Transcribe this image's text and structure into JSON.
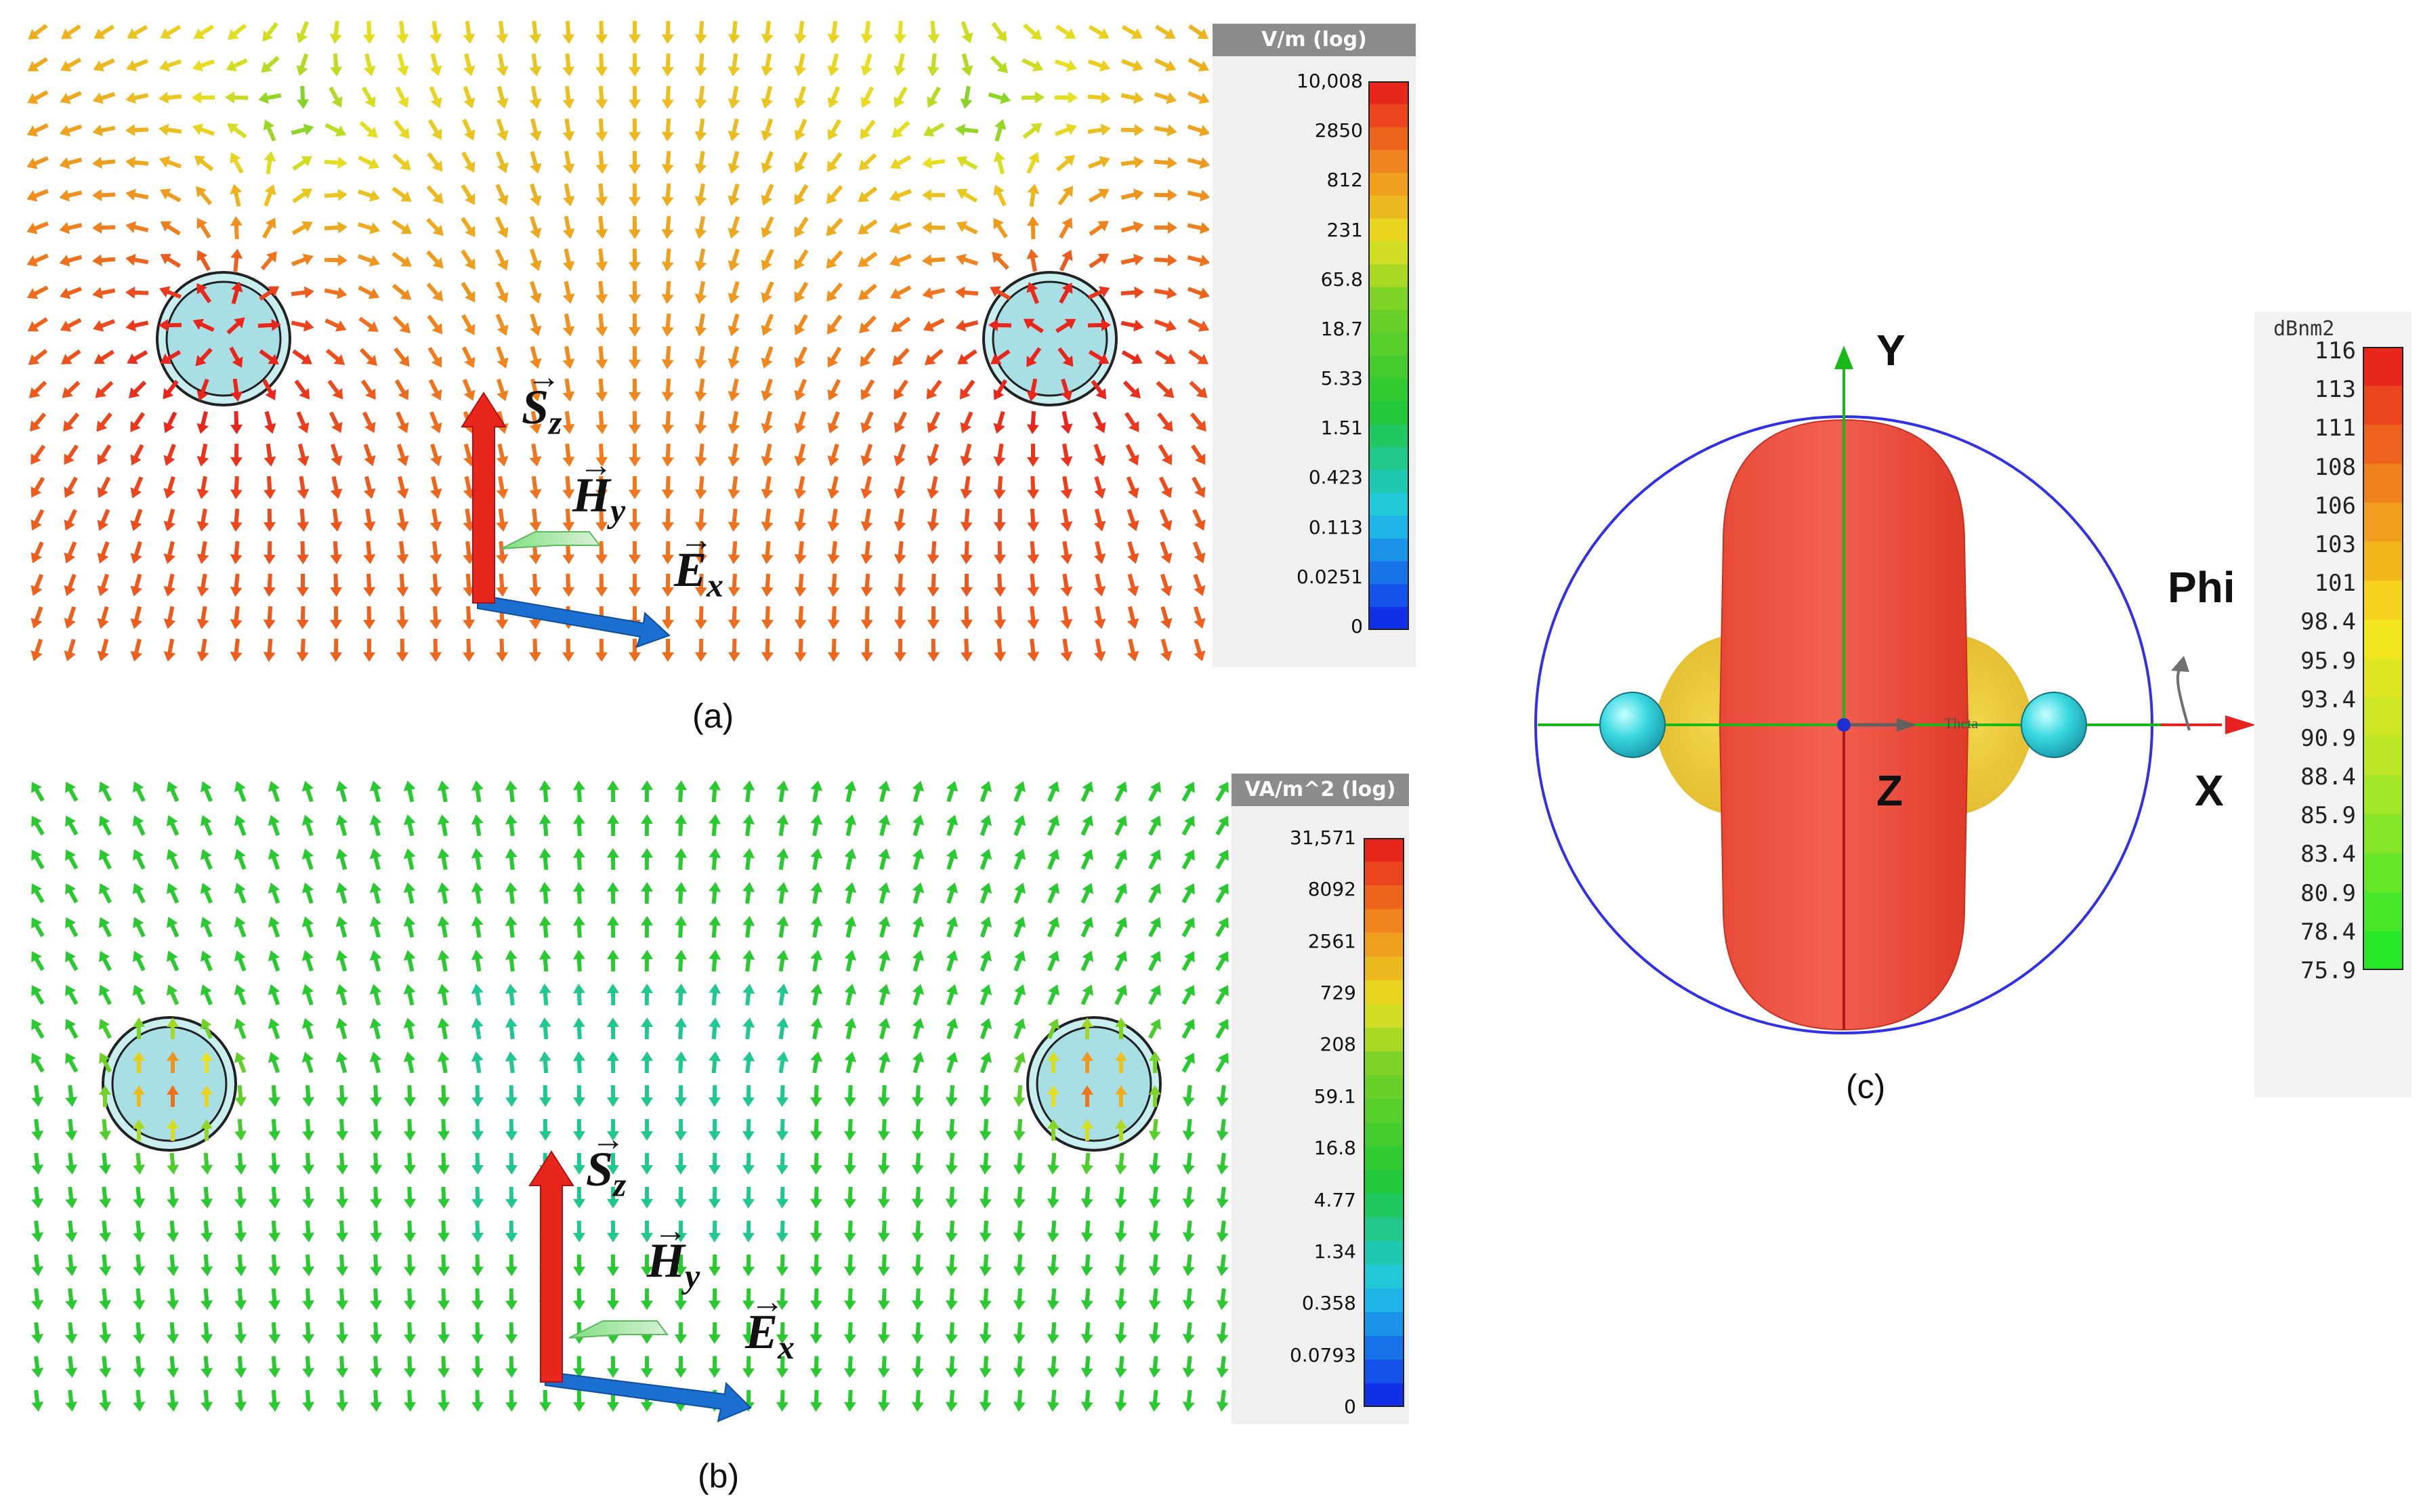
{
  "panel_a": {
    "caption": "(a)",
    "legend_title": "V/m (log)",
    "legend_ticks": [
      "10,008",
      "2850",
      "812",
      "231",
      "65.8",
      "18.7",
      "5.33",
      "1.51",
      "0.423",
      "0.113",
      "0.0251",
      "0"
    ],
    "labels": {
      "s": "S",
      "s_sub": "z",
      "h": "H",
      "h_sub": "y",
      "e": "E",
      "e_sub": "x"
    }
  },
  "panel_b": {
    "caption": "(b)",
    "legend_title": "VA/m^2 (log)",
    "legend_ticks": [
      "31,571",
      "8092",
      "2561",
      "729",
      "208",
      "59.1",
      "16.8",
      "4.77",
      "1.34",
      "0.358",
      "0.0793",
      "0"
    ],
    "labels": {
      "s": "S",
      "s_sub": "z",
      "h": "H",
      "h_sub": "y",
      "e": "E",
      "e_sub": "x"
    }
  },
  "panel_c": {
    "caption": "(c)",
    "legend_title": "dBnm2",
    "legend_ticks": [
      "116",
      "113",
      "111",
      "108",
      "106",
      "103",
      "101",
      "98.4",
      "95.9",
      "93.4",
      "90.9",
      "88.4",
      "85.9",
      "83.4",
      "80.9",
      "78.4",
      "75.9"
    ],
    "axis_y": "Y",
    "axis_x": "X",
    "axis_z": "Z",
    "phi": "Phi",
    "theta": "Theta"
  },
  "colors": {
    "red": "#e8261c",
    "orange": "#f08a1e",
    "yellow": "#e8e020",
    "green": "#22c832",
    "cyan": "#20d8e0",
    "blue": "#1030e8",
    "sphere_blue": "#3030e8"
  }
}
